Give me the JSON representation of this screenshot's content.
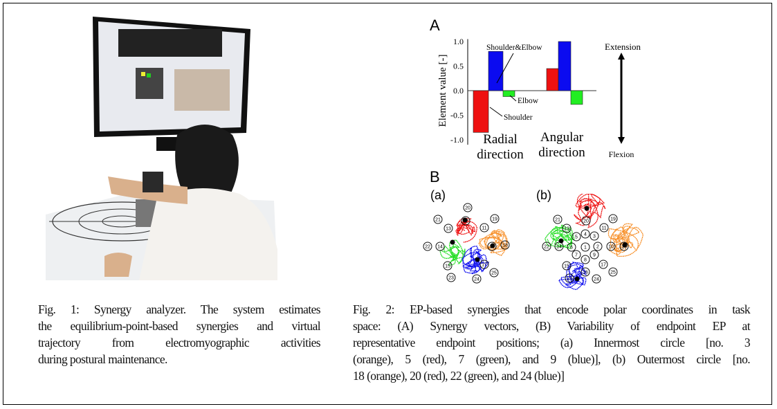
{
  "figure1": {
    "caption_lines": [
      "Fig. 1: Synergy analyzer. The system estimates",
      "the equilibrium-point-based synergies and virtual",
      "trajectory from electromyographic activities",
      "during postural maintenance."
    ]
  },
  "figure2": {
    "panel_a_label": "A",
    "panel_b_label": "B",
    "sub_a_label": "(a)",
    "sub_b_label": "(b)",
    "caption_lines": [
      "Fig. 2: EP-based synergies that encode polar coordinates in task",
      "space: (A) Synergy vectors, (B) Variability of endpoint EP at",
      "representative endpoint positions; (a) Innermost circle [no. 3",
      "(orange), 5 (red), 7 (green), and 9 (blue)], (b) Outermost circle [no.",
      "18 (orange), 20 (red), 22 (green), and 24 (blue)]"
    ],
    "arrow_top_label": "Extension",
    "arrow_bottom_label": "Flexion",
    "annotations": {
      "shoulder_elbow": "Shoulder&Elbow",
      "elbow": "Elbow",
      "shoulder": "Shoulder"
    },
    "targets_a": [
      "20",
      "21",
      "12",
      "19",
      "13",
      "11",
      "22",
      "14",
      "10",
      "18",
      "15",
      "17",
      "23",
      "24",
      "25"
    ],
    "targets_b": [
      "21",
      "20",
      "19",
      "13",
      "11",
      "5",
      "4",
      "3",
      "22",
      "14",
      "6",
      "1",
      "2",
      "10",
      "18",
      "7",
      "9",
      "8",
      "15",
      "17",
      "16",
      "25",
      "23",
      "24"
    ],
    "colors": {
      "orange": "#f7902a",
      "red": "#ee1111",
      "green": "#22dd22",
      "blue": "#1111ee"
    }
  },
  "chart_data": {
    "type": "bar",
    "title": "A",
    "ylabel": "Element value [-]",
    "xlabel": "",
    "ylim": [
      -1.0,
      1.0
    ],
    "yticks": [
      "1.0",
      "0.5",
      "0.0",
      "-0.5",
      "-1.0"
    ],
    "categories": [
      "Radial direction",
      "Angular direction"
    ],
    "category_lines": [
      [
        "Radial",
        "direction"
      ],
      [
        "Angular",
        "direction"
      ]
    ],
    "series": [
      {
        "name": "Shoulder",
        "color": "#ee1111",
        "values": [
          -0.85,
          0.45
        ]
      },
      {
        "name": "Shoulder&Elbow",
        "color": "#0b0bf0",
        "values": [
          0.8,
          1.0
        ]
      },
      {
        "name": "Elbow",
        "color": "#22ee22",
        "values": [
          -0.12,
          -0.28
        ]
      }
    ]
  }
}
